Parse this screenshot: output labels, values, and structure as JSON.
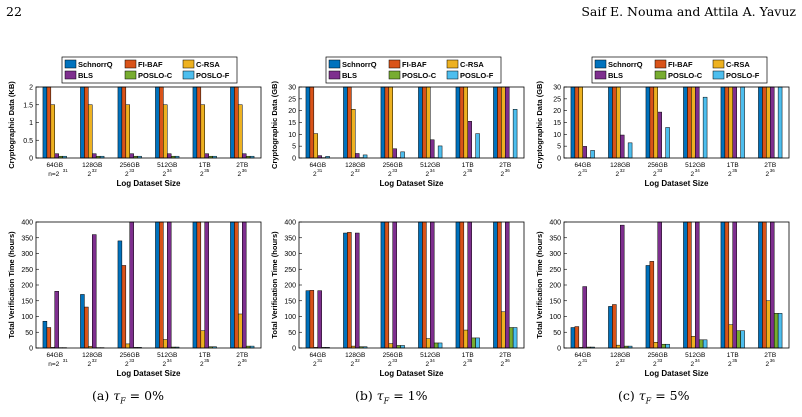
{
  "header": {
    "page_number": "22",
    "authors": "Saif E. Nouma and Attila A. Yavuz"
  },
  "captions": [
    {
      "label": "(a)",
      "value": "= 0%"
    },
    {
      "label": "(b)",
      "value": "= 1%"
    },
    {
      "label": "(c)",
      "value": "= 5%"
    }
  ],
  "legend": {
    "entries": [
      "SchnorrQ",
      "FI-BAF",
      "C-RSA",
      "BLS",
      "POSLO-C",
      "POSLO-F"
    ]
  },
  "colors": {
    "SchnorrQ": "#0072BD",
    "FI-BAF": "#D95319",
    "C-RSA": "#EDB120",
    "BLS": "#7E2F8E",
    "POSLO-C": "#77AC30",
    "POSLO-F": "#4DBEEE"
  },
  "tick_labels": {
    "top_first": [
      "64GB",
      "n=2",
      "31"
    ],
    "sizes": [
      "64GB",
      "128GB",
      "256GB",
      "512GB",
      "1TB",
      "2TB"
    ],
    "exponent_base": "2",
    "exponents": [
      "31",
      "32",
      "33",
      "34",
      "35",
      "36"
    ]
  },
  "chart_data": [
    {
      "type": "bar",
      "panel": "a-top",
      "ylabel": "Cryptographic Data (KB)",
      "xlabel": "Log Dataset Size",
      "ylim": [
        0,
        2
      ],
      "yticks": [
        0,
        0.5,
        1,
        1.5,
        2
      ],
      "categories": [
        "64GB",
        "128GB",
        "256GB",
        "512GB",
        "1TB",
        "2TB"
      ],
      "series": [
        {
          "name": "SchnorrQ",
          "values": [
            2,
            2,
            2,
            2,
            2,
            2
          ]
        },
        {
          "name": "FI-BAF",
          "values": [
            2,
            2,
            2,
            2,
            2,
            2
          ]
        },
        {
          "name": "C-RSA",
          "values": [
            1.5,
            1.5,
            1.5,
            1.5,
            1.5,
            1.5
          ]
        },
        {
          "name": "BLS",
          "values": [
            0.12,
            0.12,
            0.12,
            0.12,
            0.12,
            0.12
          ]
        },
        {
          "name": "POSLO-C",
          "values": [
            0.05,
            0.05,
            0.05,
            0.05,
            0.05,
            0.05
          ]
        },
        {
          "name": "POSLO-F",
          "values": [
            0.05,
            0.05,
            0.05,
            0.05,
            0.05,
            0.05
          ]
        }
      ]
    },
    {
      "type": "bar",
      "panel": "b-top",
      "ylabel": "Cryptographic Data (GB)",
      "xlabel": "Log Dataset Size",
      "ylim": [
        0,
        30
      ],
      "yticks": [
        0,
        5,
        10,
        15,
        20,
        25,
        30
      ],
      "categories": [
        "64GB",
        "128GB",
        "256GB",
        "512GB",
        "1TB",
        "2TB"
      ],
      "series": [
        {
          "name": "SchnorrQ",
          "values": [
            30,
            30,
            30,
            30,
            30,
            30
          ]
        },
        {
          "name": "FI-BAF",
          "values": [
            30,
            30,
            30,
            30,
            30,
            30
          ]
        },
        {
          "name": "C-RSA",
          "values": [
            10.3,
            20.6,
            30,
            30,
            30,
            30
          ]
        },
        {
          "name": "BLS",
          "values": [
            1,
            1.9,
            3.9,
            7.7,
            15.5,
            30
          ]
        },
        {
          "name": "POSLO-C",
          "values": [
            0.1,
            0.1,
            0.1,
            0.1,
            0.1,
            0.1
          ]
        },
        {
          "name": "POSLO-F",
          "values": [
            0.7,
            1.3,
            2.6,
            5.1,
            10.3,
            20.6
          ]
        }
      ]
    },
    {
      "type": "bar",
      "panel": "c-top",
      "ylabel": "Cryptographic Data (GB)",
      "xlabel": "Log Dataset Size",
      "ylim": [
        0,
        30
      ],
      "yticks": [
        0,
        5,
        10,
        15,
        20,
        25,
        30
      ],
      "categories": [
        "64GB",
        "128GB",
        "256GB",
        "512GB",
        "1TB",
        "2TB"
      ],
      "series": [
        {
          "name": "SchnorrQ",
          "values": [
            30,
            30,
            30,
            30,
            30,
            30
          ]
        },
        {
          "name": "FI-BAF",
          "values": [
            30,
            30,
            30,
            30,
            30,
            30
          ]
        },
        {
          "name": "C-RSA",
          "values": [
            30,
            30,
            30,
            30,
            30,
            30
          ]
        },
        {
          "name": "BLS",
          "values": [
            4.9,
            9.7,
            19.4,
            30,
            30,
            30
          ]
        },
        {
          "name": "POSLO-C",
          "values": [
            0.1,
            0.1,
            0.1,
            0.1,
            0.1,
            0.1
          ]
        },
        {
          "name": "POSLO-F",
          "values": [
            3.2,
            6.4,
            12.9,
            25.7,
            30,
            30
          ]
        }
      ]
    },
    {
      "type": "bar",
      "panel": "a-bottom",
      "ylabel": "Total Verification Time (hours)",
      "xlabel": "Log Dataset Size",
      "ylim": [
        0,
        400
      ],
      "yticks": [
        0,
        50,
        100,
        150,
        200,
        250,
        300,
        350,
        400
      ],
      "categories": [
        "64GB",
        "128GB",
        "256GB",
        "512GB",
        "1TB",
        "2TB"
      ],
      "series": [
        {
          "name": "SchnorrQ",
          "values": [
            85,
            170,
            340,
            400,
            400,
            400
          ]
        },
        {
          "name": "FI-BAF",
          "values": [
            65,
            130,
            262,
            400,
            400,
            400
          ]
        },
        {
          "name": "C-RSA",
          "values": [
            2,
            5,
            13,
            27,
            55,
            108
          ]
        },
        {
          "name": "BLS",
          "values": [
            180,
            360,
            400,
            400,
            400,
            400
          ]
        },
        {
          "name": "POSLO-C",
          "values": [
            0.5,
            1,
            2,
            3,
            4,
            6
          ]
        },
        {
          "name": "POSLO-F",
          "values": [
            0.5,
            1,
            2,
            3,
            4,
            6
          ]
        }
      ]
    },
    {
      "type": "bar",
      "panel": "b-bottom",
      "ylabel": "Total Verification Time (hours)",
      "xlabel": "Log Dataset Size",
      "ylim": [
        0,
        400
      ],
      "yticks": [
        0,
        50,
        100,
        150,
        200,
        250,
        300,
        350,
        400
      ],
      "categories": [
        "64GB",
        "128GB",
        "256GB",
        "512GB",
        "1TB",
        "2TB"
      ],
      "series": [
        {
          "name": "SchnorrQ",
          "values": [
            182,
            365,
            400,
            400,
            400,
            400
          ]
        },
        {
          "name": "FI-BAF",
          "values": [
            183,
            367,
            400,
            400,
            400,
            400
          ]
        },
        {
          "name": "C-RSA",
          "values": [
            2,
            6,
            14,
            30,
            57,
            115
          ]
        },
        {
          "name": "BLS",
          "values": [
            182,
            365,
            400,
            400,
            400,
            400
          ]
        },
        {
          "name": "POSLO-C",
          "values": [
            2,
            4,
            8,
            16,
            32,
            65
          ]
        },
        {
          "name": "POSLO-F",
          "values": [
            2,
            4,
            8,
            16,
            32,
            65
          ]
        }
      ]
    },
    {
      "type": "bar",
      "panel": "c-bottom",
      "ylabel": "Total Verification Time (hours)",
      "xlabel": "Log Dataset Size",
      "ylim": [
        0,
        400
      ],
      "yticks": [
        0,
        50,
        100,
        150,
        200,
        250,
        300,
        350,
        400
      ],
      "categories": [
        "64GB",
        "128GB",
        "256GB",
        "512GB",
        "1TB",
        "2TB"
      ],
      "series": [
        {
          "name": "SchnorrQ",
          "values": [
            65,
            132,
            262,
            400,
            400,
            400
          ]
        },
        {
          "name": "FI-BAF",
          "values": [
            68,
            138,
            275,
            400,
            400,
            400
          ]
        },
        {
          "name": "C-RSA",
          "values": [
            2,
            9,
            18,
            37,
            74,
            150
          ]
        },
        {
          "name": "BLS",
          "values": [
            195,
            390,
            400,
            400,
            400,
            400
          ]
        },
        {
          "name": "POSLO-C",
          "values": [
            3,
            6,
            12,
            26,
            55,
            110
          ]
        },
        {
          "name": "POSLO-F",
          "values": [
            3,
            6,
            12,
            26,
            55,
            110
          ]
        }
      ]
    }
  ]
}
